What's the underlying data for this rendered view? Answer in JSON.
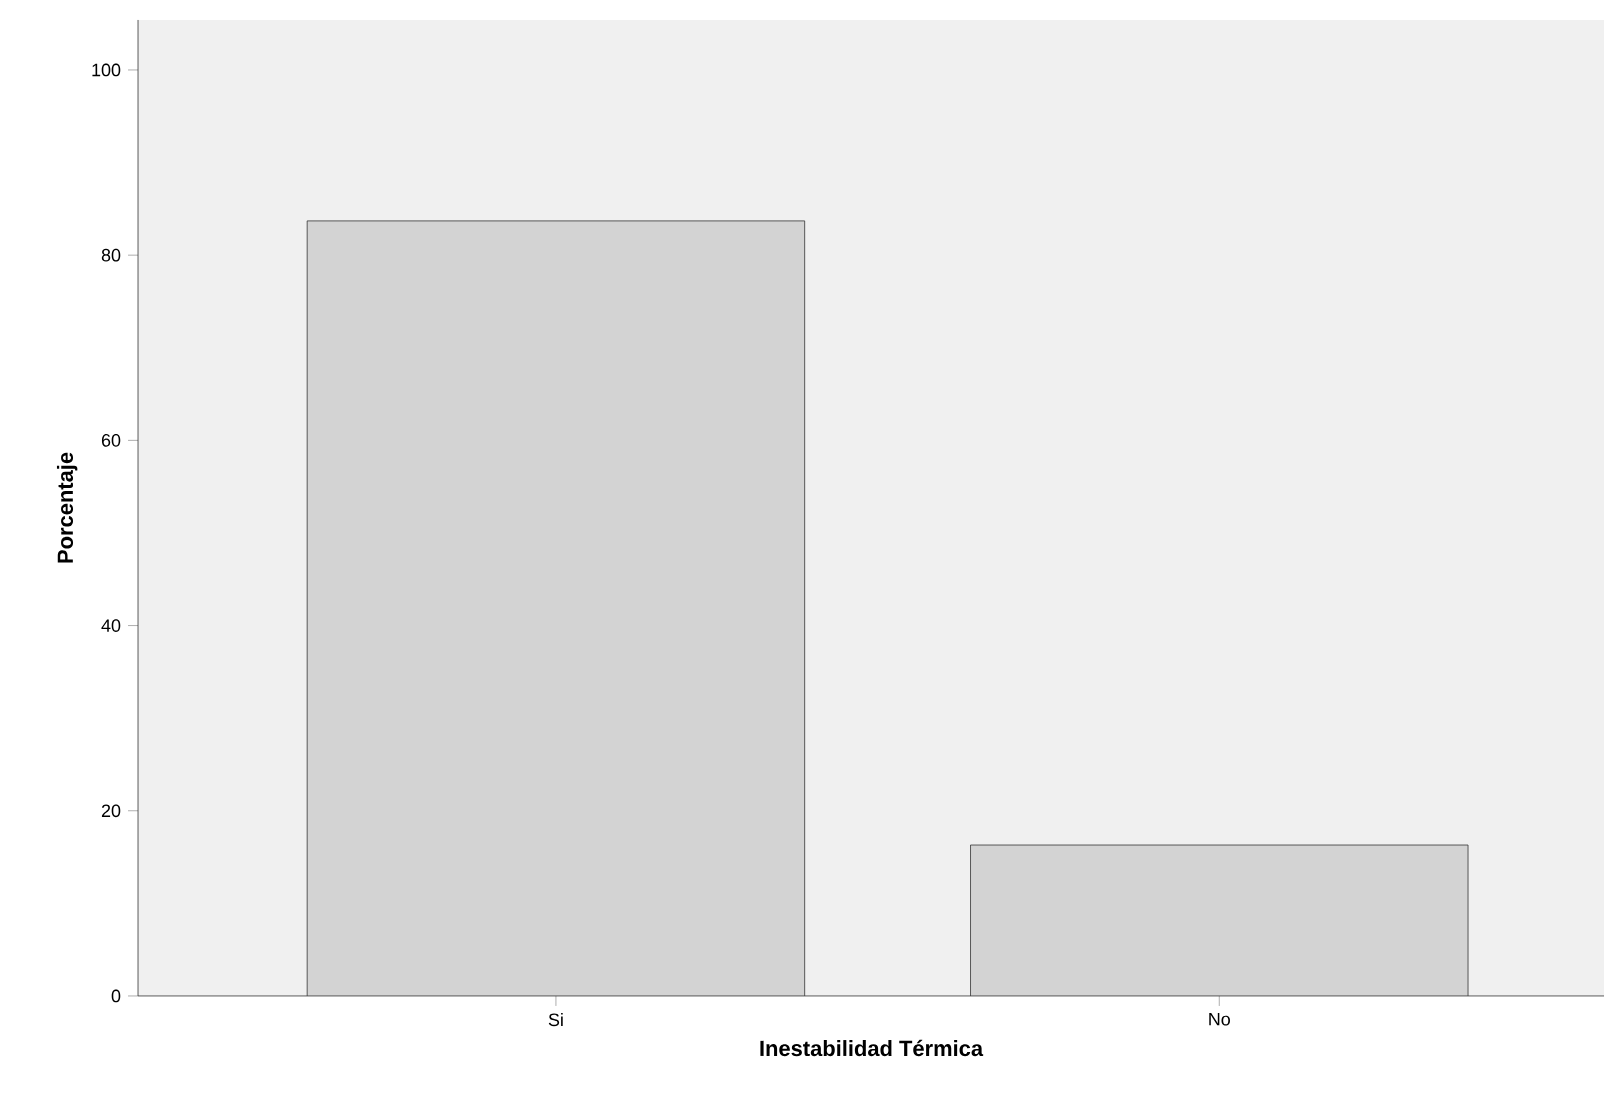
{
  "chart_data": {
    "type": "bar",
    "xlabel": "Inestabilidad Térmica",
    "ylabel": "Porcentaje",
    "categories": [
      "Si",
      "No"
    ],
    "values": [
      83.7,
      16.3
    ],
    "color": "#d3d3d3",
    "ylim": [
      0,
      105.4
    ],
    "yticks": [
      0,
      20,
      40,
      60,
      80,
      100
    ],
    "grid": false
  }
}
